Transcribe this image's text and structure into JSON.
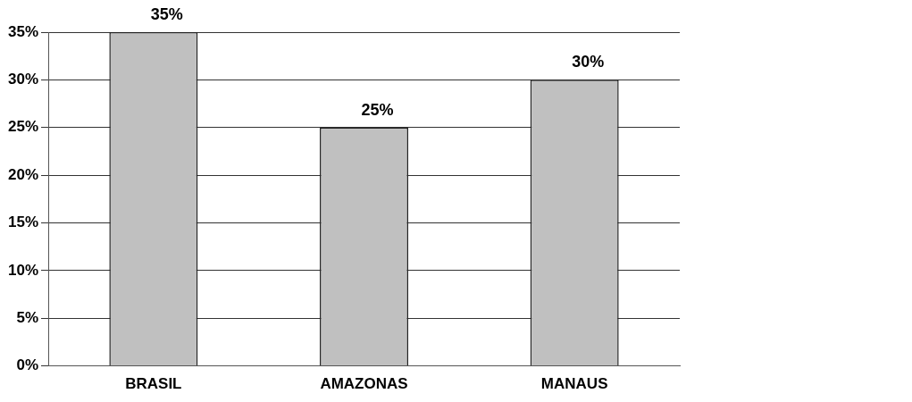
{
  "chart_data": {
    "type": "bar",
    "categories": [
      "BRASIL",
      "AMAZONAS",
      "MANAUS"
    ],
    "values": [
      35,
      25,
      30
    ],
    "value_labels": [
      "35%",
      "25%",
      "30%"
    ],
    "data_labels": true,
    "color": "#c0c0c0",
    "ylim": [
      0,
      35
    ],
    "yticks": [
      {
        "value": 0,
        "label": "0%"
      },
      {
        "value": 5,
        "label": "5%"
      },
      {
        "value": 10,
        "label": "10%"
      },
      {
        "value": 15,
        "label": "15%"
      },
      {
        "value": 20,
        "label": "20%"
      },
      {
        "value": 25,
        "label": "25%"
      },
      {
        "value": 30,
        "label": "30%"
      },
      {
        "value": 35,
        "label": "35%"
      }
    ],
    "grid": true
  }
}
